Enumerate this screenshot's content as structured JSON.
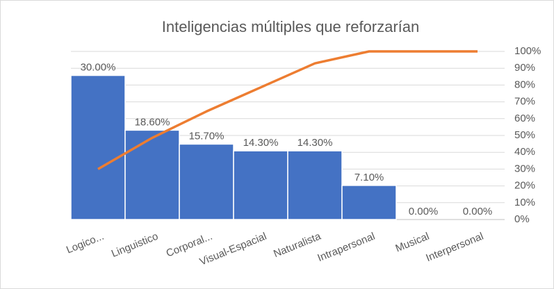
{
  "chart_data": {
    "type": "pareto",
    "title": "Inteligencias múltiples que reforzarían",
    "categories": [
      "Logico...",
      "Linguistico",
      "Corporal...",
      "Visual-Espacial",
      "Naturalista",
      "Intrapersonal",
      "Musical",
      "Interpersonal"
    ],
    "series": [
      {
        "type": "bar",
        "color": "#4472c4",
        "values": [
          30,
          18.6,
          15.7,
          14.3,
          14.3,
          7.1,
          0,
          0
        ],
        "value_labels": [
          "30.00%",
          "18.60%",
          "15.70%",
          "14.30%",
          "14.30%",
          "7.10%",
          "0.00%",
          "0.00%"
        ]
      },
      {
        "type": "line",
        "color": "#ed7d31",
        "axis": "y2",
        "values": [
          30,
          48.6,
          64.3,
          78.6,
          92.9,
          100,
          100,
          100
        ]
      }
    ],
    "ylim": [
      0,
      35
    ],
    "y2lim": [
      0,
      100
    ],
    "y2ticks": [
      {
        "value": 0,
        "label": "0%"
      },
      {
        "value": 10,
        "label": "10%"
      },
      {
        "value": 20,
        "label": "20%"
      },
      {
        "value": 30,
        "label": "30%"
      },
      {
        "value": 40,
        "label": "40%"
      },
      {
        "value": 50,
        "label": "50%"
      },
      {
        "value": 60,
        "label": "60%"
      },
      {
        "value": 70,
        "label": "70%"
      },
      {
        "value": 80,
        "label": "80%"
      },
      {
        "value": 90,
        "label": "90%"
      },
      {
        "value": 100,
        "label": "100%"
      }
    ],
    "grid": true
  }
}
